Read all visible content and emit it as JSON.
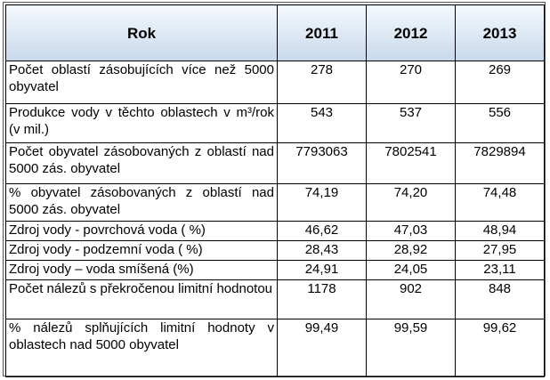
{
  "table": {
    "header": [
      "Rok",
      "2011",
      "2012",
      "2013"
    ],
    "rows": [
      [
        "Počet oblastí zásobujících více než 5000 obyvatel",
        "278",
        "270",
        "269"
      ],
      [
        "Produkce vody v těchto oblastech v m³/rok (v mil.)",
        "543",
        "537",
        "556"
      ],
      [
        "Počet obyvatel zásobovaných z oblastí nad 5000 zás. obyvatel",
        "7793063",
        "7802541",
        "7829894"
      ],
      [
        "% obyvatel zásobovaných z oblastí nad 5000 zás. obyvatel",
        "74,19",
        "74,20",
        "74,48"
      ],
      [
        "Zdroj vody - povrchová voda ( %)",
        "46,62",
        "47,03",
        "48,94"
      ],
      [
        "Zdroj vody - podzemní voda ( %)",
        "28,43",
        "28,92",
        "27,95"
      ],
      [
        "Zdroj vody – voda smíšená  (%)",
        "24,91",
        "24,05",
        "23,11"
      ],
      [
        "Počet nálezů s překročenou limitní hodnotou",
        "1178",
        "902",
        "848"
      ],
      [
        "% nálezů splňujících limitní hodnoty v oblastech nad 5000 obyvatel",
        "99,49",
        "99,59",
        "99,62"
      ]
    ]
  }
}
